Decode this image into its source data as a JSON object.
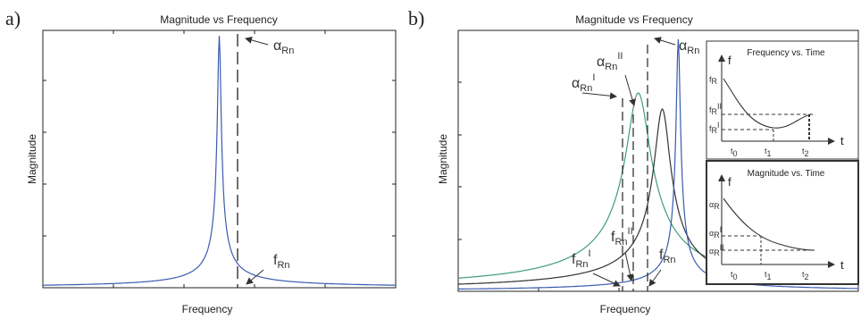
{
  "colors": {
    "blue": "#3a5bb0",
    "black": "#333333",
    "green": "#3f9d78",
    "axis": "#222222"
  },
  "panels": [
    {
      "letter": "a)",
      "title": "Magnitude vs Frequency",
      "xlabel": "Frequency",
      "ylabel": "Magnitude",
      "peak_label": "α",
      "peak_sub": "Rn",
      "freq_label": "f",
      "freq_sub": "Rn"
    },
    {
      "letter": "b)",
      "title": "Magnitude vs Frequency",
      "xlabel": "Frequency",
      "ylabel": "Magnitude",
      "peak_labels": [
        {
          "base": "α",
          "sub": "Rn",
          "sup": "I"
        },
        {
          "base": "α",
          "sub": "Rn",
          "sup": "II"
        },
        {
          "base": "α",
          "sub": "Rn",
          "sup": ""
        }
      ],
      "freq_labels": [
        {
          "base": "f",
          "sub": "Rn",
          "sup": "I"
        },
        {
          "base": "f",
          "sub": "Rn",
          "sup": "II"
        },
        {
          "base": "f",
          "sub": "Rn",
          "sup": ""
        }
      ]
    }
  ],
  "insets": [
    {
      "title": "Frequency vs. Time",
      "ylabel": "f",
      "xlabel": "t",
      "y_labels": [
        "f",
        "f",
        "f"
      ],
      "y_sups": [
        "",
        "II",
        "I"
      ],
      "y_subs": [
        "R",
        "R",
        "R"
      ],
      "x_labels": [
        "t",
        "t",
        "t"
      ],
      "x_subs": [
        "0",
        "1",
        "2"
      ]
    },
    {
      "title": "Magnitude vs. Time",
      "ylabel": "f",
      "xlabel": "t",
      "y_labels": [
        "α",
        "α",
        "α"
      ],
      "y_sups": [
        "",
        "I",
        "II"
      ],
      "y_subs": [
        "R",
        "R",
        "R"
      ],
      "x_labels": [
        "t",
        "t",
        "t"
      ],
      "x_subs": [
        "0",
        "1",
        "2"
      ]
    }
  ],
  "chart_data": [
    {
      "type": "line",
      "title": "Magnitude vs Frequency",
      "xlabel": "Frequency",
      "ylabel": "Magnitude",
      "series": [
        {
          "name": "",
          "resonance_center": 0.5,
          "damping": 0.005
        }
      ],
      "xlim": [
        0,
        1
      ],
      "grid": false
    },
    {
      "type": "line",
      "title": "Magnitude vs Frequency",
      "xlabel": "Frequency",
      "ylabel": "Magnitude",
      "series": [
        {
          "name": "",
          "resonance_center": 0.45,
          "damping": 0.03
        },
        {
          "name": "",
          "resonance_center": 0.51,
          "damping": 0.02
        },
        {
          "name": "",
          "resonance_center": 0.55,
          "damping": 0.005
        }
      ],
      "xlim": [
        0,
        1
      ],
      "grid": false
    },
    {
      "type": "line",
      "title": "Frequency vs. Time",
      "ylabel": "f",
      "xlabel": "t",
      "series": [
        {
          "name": "",
          "shape": "decay-rise"
        }
      ]
    },
    {
      "type": "line",
      "title": "Magnitude vs. Time",
      "ylabel": "f",
      "xlabel": "t",
      "series": [
        {
          "name": "",
          "shape": "decay"
        }
      ]
    }
  ]
}
